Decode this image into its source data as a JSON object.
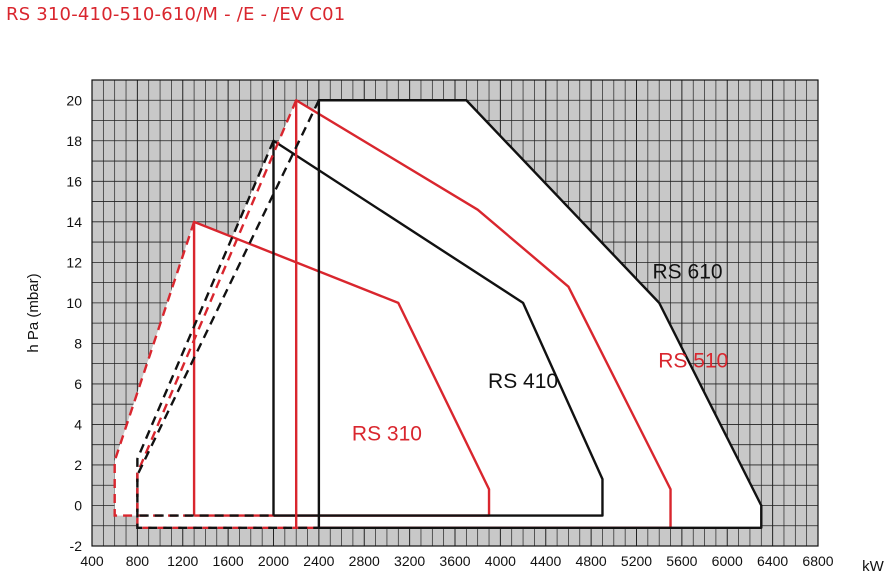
{
  "title": "RS 310-410-510-610/M - /E - /EV C01",
  "chart_data": {
    "type": "area",
    "xlabel": "kW",
    "ylabel": "h Pa (mbar)",
    "xlim": [
      400,
      6800
    ],
    "ylim": [
      -2,
      21
    ],
    "xticks": [
      400,
      800,
      1200,
      1600,
      2000,
      2400,
      2800,
      3200,
      3600,
      4000,
      4400,
      4800,
      5200,
      5600,
      6000,
      6400,
      6800
    ],
    "yticks": [
      -2,
      0,
      2,
      4,
      6,
      8,
      10,
      12,
      14,
      16,
      18,
      20
    ],
    "grid": true,
    "series": [
      {
        "name": "RS 310",
        "color": "#d9262e",
        "label_x": 3000,
        "label_y": 3.2,
        "solid": [
          [
            1300,
            -0.5
          ],
          [
            1300,
            14
          ],
          [
            3100,
            10
          ],
          [
            3900,
            0.8
          ],
          [
            3900,
            -0.5
          ],
          [
            1300,
            -0.5
          ]
        ],
        "dashed": [
          [
            1300,
            14
          ],
          [
            600,
            2.2
          ],
          [
            600,
            -0.5
          ],
          [
            1300,
            -0.5
          ]
        ]
      },
      {
        "name": "RS 410",
        "color": "#111111",
        "label_x": 4200,
        "label_y": 5.8,
        "solid": [
          [
            2000,
            -0.5
          ],
          [
            2000,
            18
          ],
          [
            4200,
            10
          ],
          [
            4900,
            1.3
          ],
          [
            4900,
            -0.5
          ],
          [
            2000,
            -0.5
          ]
        ],
        "dashed": [
          [
            2000,
            18
          ],
          [
            800,
            2.3
          ],
          [
            800,
            -0.5
          ],
          [
            2000,
            -0.5
          ]
        ]
      },
      {
        "name": "RS 510",
        "color": "#d9262e",
        "label_x": 5700,
        "label_y": 6.8,
        "solid": [
          [
            2200,
            -1.1
          ],
          [
            2200,
            20
          ],
          [
            3800,
            14.6
          ],
          [
            4600,
            10.8
          ],
          [
            5500,
            0.8
          ],
          [
            5500,
            -1.1
          ],
          [
            2200,
            -1.1
          ]
        ],
        "dashed": [
          [
            2200,
            20
          ],
          [
            800,
            1.6
          ],
          [
            800,
            -1.1
          ],
          [
            2200,
            -1.1
          ]
        ]
      },
      {
        "name": "RS 610",
        "color": "#111111",
        "label_x": 5650,
        "label_y": 11.2,
        "solid": [
          [
            2400,
            -1.1
          ],
          [
            2400,
            20
          ],
          [
            3700,
            20
          ],
          [
            5400,
            10
          ],
          [
            6300,
            0
          ],
          [
            6300,
            -1.1
          ],
          [
            2400,
            -1.1
          ]
        ],
        "dashed": [
          [
            2400,
            20
          ],
          [
            800,
            1.5
          ],
          [
            800,
            -1.1
          ],
          [
            2400,
            -1.1
          ]
        ]
      }
    ]
  }
}
